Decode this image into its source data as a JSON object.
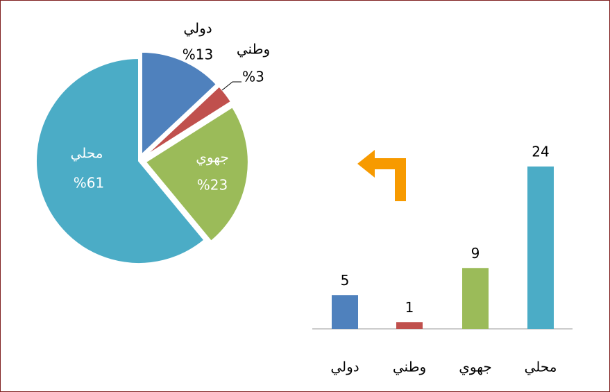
{
  "chart_data": [
    {
      "type": "pie",
      "categories": [
        "دولي",
        "وطني",
        "جهوي",
        "محلي"
      ],
      "values": [
        13,
        3,
        23,
        61
      ],
      "value_labels": [
        "%13",
        "%3",
        "%23",
        "%61"
      ],
      "colors": [
        "#4f81bd",
        "#c0504d",
        "#9bbb59",
        "#4bacc6"
      ]
    },
    {
      "type": "bar",
      "categories": [
        "دولي",
        "وطني",
        "جهوي",
        "محلي"
      ],
      "values": [
        5,
        1,
        9,
        24
      ],
      "colors": [
        "#4f81bd",
        "#c0504d",
        "#9bbb59",
        "#4bacc6"
      ]
    }
  ]
}
